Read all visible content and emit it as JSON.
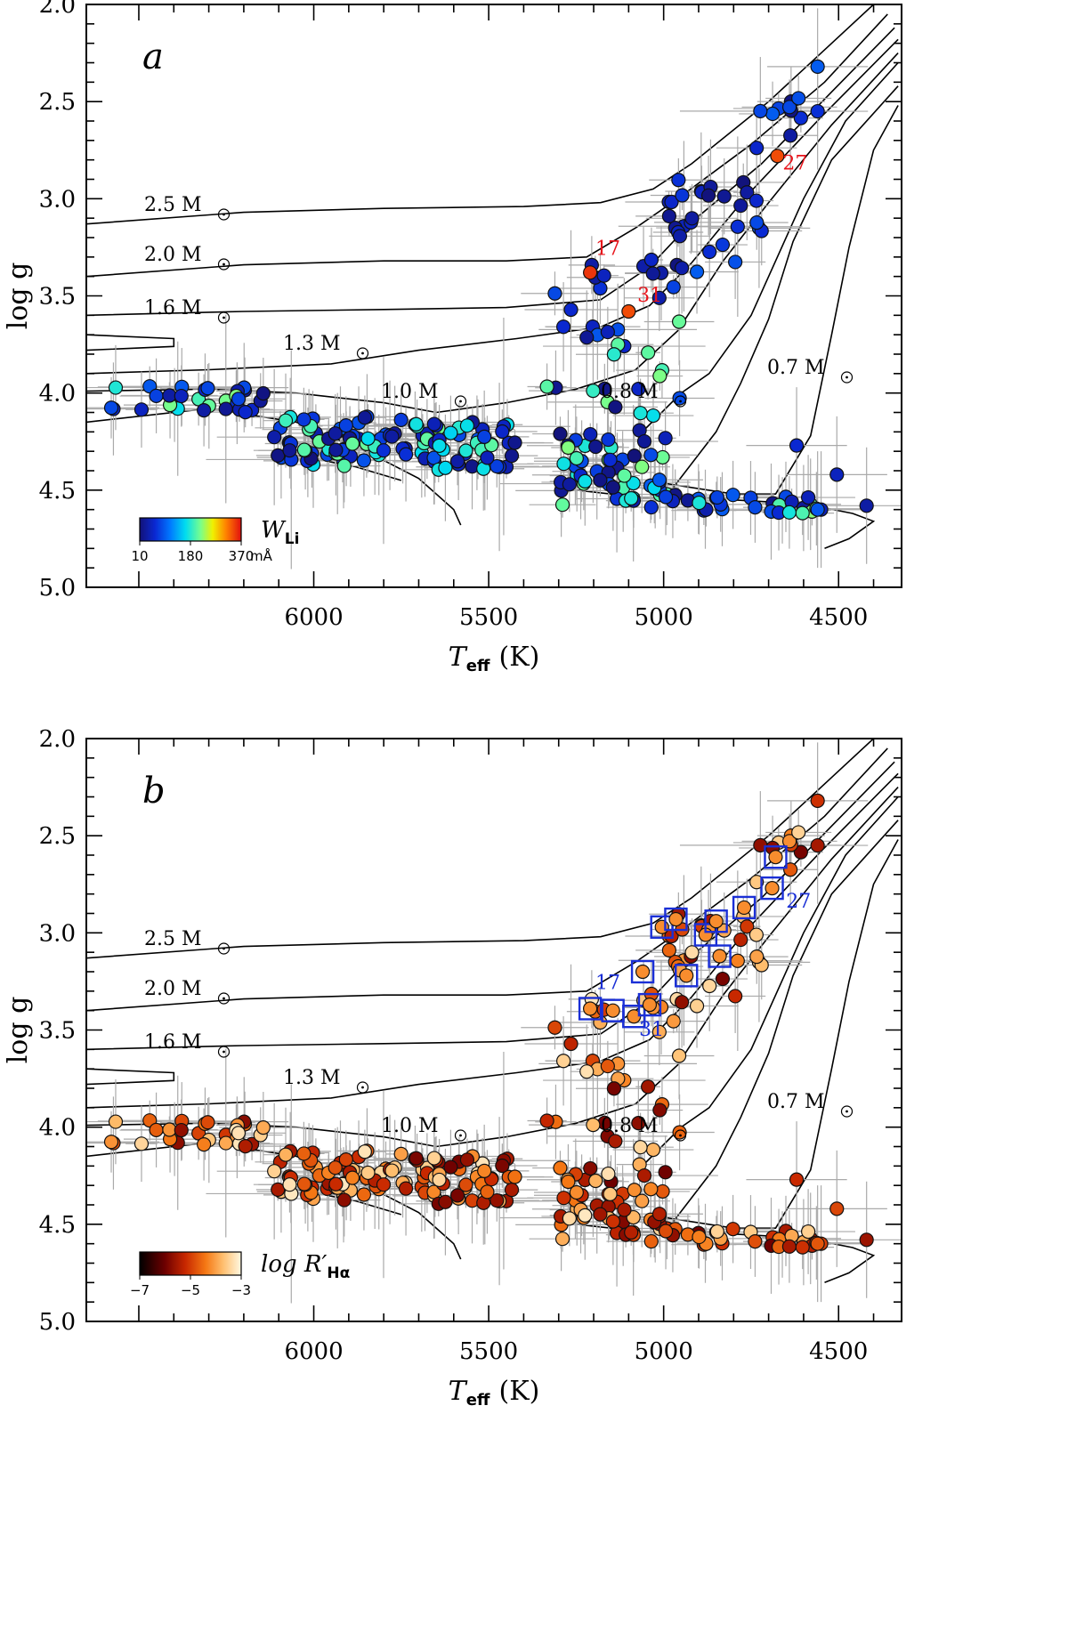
{
  "colors": {
    "errorbar": "#aaaaaa",
    "annotation_a": "#e8141b",
    "annotation_b": "#1a2fd6",
    "box_b": "#1a2fd6"
  },
  "chart_data": [
    {
      "type": "scatter",
      "panel_label": "a",
      "xlabel": "T",
      "xlabel_sub": "eff",
      "xlabel_unit": "(K)",
      "ylabel": "log g",
      "xlim": [
        6650,
        4320
      ],
      "ylim": [
        5.0,
        2.0
      ],
      "xticks": [
        6000,
        5500,
        5000,
        4500
      ],
      "yticks": [
        2.0,
        2.5,
        3.0,
        3.5,
        4.0,
        4.5,
        5.0
      ],
      "colorbar": {
        "title": "W",
        "title_sub": "Li",
        "tick_labels": [
          "10",
          "180",
          "370"
        ],
        "unit": "mÅ",
        "colormap": "rainbow"
      },
      "track_labels": [
        "2.5 M",
        "2.0 M",
        "1.6 M",
        "1.3 M",
        "1.0 M",
        "0.8 M",
        "0.7 M"
      ],
      "annotations": [
        {
          "text": "17",
          "x": 5195,
          "y": 3.29
        },
        {
          "text": "31",
          "x": 5075,
          "y": 3.53
        },
        {
          "text": "27",
          "x": 4660,
          "y": 2.85
        }
      ],
      "highlight_points": [
        {
          "x": 5210,
          "y": 3.38,
          "c": 0.95
        },
        {
          "x": 5100,
          "y": 3.58,
          "c": 0.92
        },
        {
          "x": 4675,
          "y": 2.78,
          "c": 0.92
        }
      ]
    },
    {
      "type": "scatter",
      "panel_label": "b",
      "xlabel": "T",
      "xlabel_sub": "eff",
      "xlabel_unit": "(K)",
      "ylabel": "log g",
      "xlim": [
        6650,
        4320
      ],
      "ylim": [
        5.0,
        2.0
      ],
      "xticks": [
        6000,
        5500,
        5000,
        4500
      ],
      "yticks": [
        2.0,
        2.5,
        3.0,
        3.5,
        4.0,
        4.5,
        5.0
      ],
      "colorbar": {
        "title": "log R′",
        "title_sub": "Hα",
        "tick_labels": [
          "−7",
          "−5",
          "−3"
        ],
        "unit": "",
        "colormap": "heat"
      },
      "track_labels": [
        "2.5 M",
        "2.0 M",
        "1.6 M",
        "1.3 M",
        "1.0 M",
        "0.8 M",
        "0.7 M"
      ],
      "annotations": [
        {
          "text": "17",
          "x": 5195,
          "y": 3.29
        },
        {
          "text": "31",
          "x": 5070,
          "y": 3.53
        },
        {
          "text": "27",
          "x": 4650,
          "y": 2.87
        }
      ],
      "boxed_points": [
        {
          "x": 5210,
          "y": 3.39
        },
        {
          "x": 5145,
          "y": 3.4
        },
        {
          "x": 5085,
          "y": 3.43
        },
        {
          "x": 5040,
          "y": 3.37
        },
        {
          "x": 5060,
          "y": 3.2
        },
        {
          "x": 5005,
          "y": 2.97
        },
        {
          "x": 4965,
          "y": 2.93
        },
        {
          "x": 4935,
          "y": 3.22
        },
        {
          "x": 4880,
          "y": 3.01
        },
        {
          "x": 4850,
          "y": 2.94
        },
        {
          "x": 4840,
          "y": 3.12
        },
        {
          "x": 4770,
          "y": 2.87
        },
        {
          "x": 4690,
          "y": 2.77
        },
        {
          "x": 4680,
          "y": 2.61
        }
      ]
    }
  ]
}
